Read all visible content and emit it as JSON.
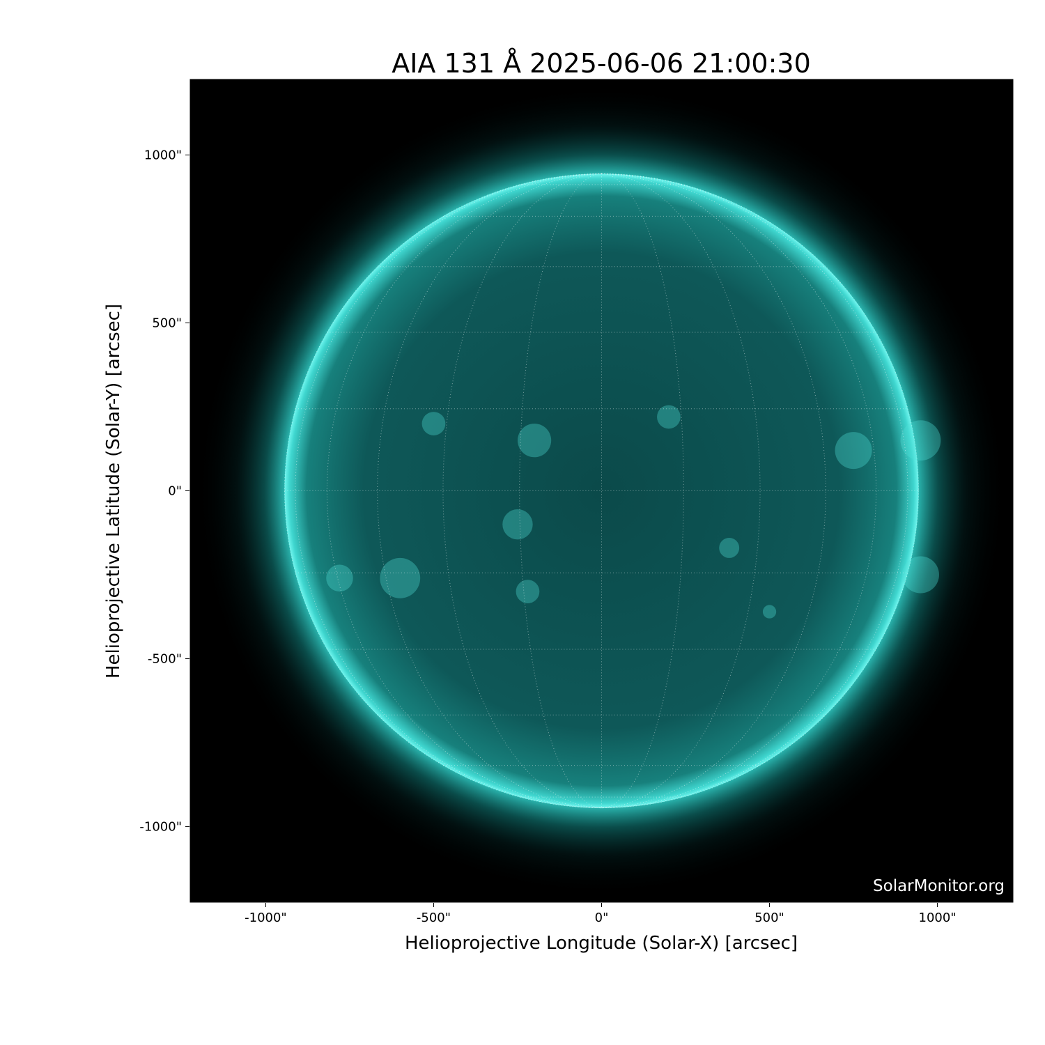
{
  "title": "AIA 131 Å 2025-06-06 21:00:30",
  "xlabel": "Helioprojective Longitude (Solar-X) [arcsec]",
  "ylabel": "Helioprojective Latitude (Solar-Y) [arcsec]",
  "watermark": "SolarMonitor.org",
  "x_ticks": [
    {
      "value": -1000,
      "label": "-1000\""
    },
    {
      "value": -500,
      "label": "-500\""
    },
    {
      "value": 0,
      "label": "0\""
    },
    {
      "value": 500,
      "label": "500\""
    },
    {
      "value": 1000,
      "label": "1000\""
    }
  ],
  "y_ticks": [
    {
      "value": 1000,
      "label": "1000\""
    },
    {
      "value": 500,
      "label": "500\""
    },
    {
      "value": 0,
      "label": "0\""
    },
    {
      "value": -500,
      "label": "-500\""
    },
    {
      "value": -1000,
      "label": "-1000\""
    }
  ],
  "xlim": [
    -1227,
    1227
  ],
  "ylim": [
    -1227,
    1227
  ],
  "solar_radius_arcsec": 944,
  "grid_spacing_deg": 15,
  "colors": {
    "disk": "#0e5a5a",
    "limb": "#3ee8e0",
    "background": "#000000"
  }
}
